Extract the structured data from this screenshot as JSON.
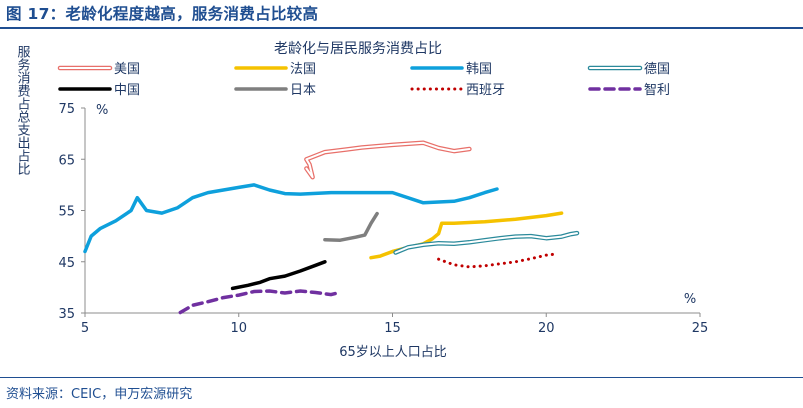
{
  "figure_title": "图 17：老龄化程度越高，服务消费占比较高",
  "source": "资料来源：CEIC，申万宏源研究",
  "chart_data": {
    "type": "line",
    "title": "老龄化与居民服务消费占比",
    "xlabel": "65岁以上人口占比",
    "ylabel": "服务消费占总支出占比",
    "x_unit": "%",
    "y_unit": "%",
    "xlim": [
      5,
      25
    ],
    "ylim": [
      35,
      75
    ],
    "x_ticks": [
      "5",
      "10",
      "15",
      "20",
      "25"
    ],
    "y_ticks": [
      "35",
      "45",
      "55",
      "65",
      "75"
    ],
    "grid": false,
    "legend_position": "top",
    "series": [
      {
        "name": "美国",
        "color": "#e8706a",
        "style": "double",
        "points": [
          [
            12.2,
            63.2
          ],
          [
            12.4,
            61.5
          ],
          [
            12.3,
            64
          ],
          [
            12.2,
            65
          ],
          [
            12.8,
            66.4
          ],
          [
            13.5,
            66.9
          ],
          [
            14,
            67.3
          ],
          [
            15,
            67.8
          ],
          [
            16,
            68.2
          ],
          [
            16.5,
            67.2
          ],
          [
            17,
            66.6
          ],
          [
            17.5,
            67.0
          ]
        ]
      },
      {
        "name": "法国",
        "color": "#f5c200",
        "style": "solid",
        "points": [
          [
            14.3,
            45.8
          ],
          [
            14.6,
            46.1
          ],
          [
            15,
            47
          ],
          [
            15.5,
            47.8
          ],
          [
            16,
            48.5
          ],
          [
            16.3,
            49.5
          ],
          [
            16.5,
            50.5
          ],
          [
            16.6,
            52.5
          ],
          [
            17,
            52.5
          ],
          [
            18,
            52.8
          ],
          [
            19,
            53.3
          ],
          [
            20,
            54
          ],
          [
            20.5,
            54.5
          ]
        ]
      },
      {
        "name": "韩国",
        "color": "#0ea0dc",
        "style": "solid",
        "points": [
          [
            5,
            47
          ],
          [
            5.2,
            50
          ],
          [
            5.5,
            51.5
          ],
          [
            6,
            53
          ],
          [
            6.5,
            55
          ],
          [
            6.7,
            57.5
          ],
          [
            7,
            55
          ],
          [
            7.5,
            54.5
          ],
          [
            8,
            55.5
          ],
          [
            8.5,
            57.5
          ],
          [
            9,
            58.5
          ],
          [
            10,
            59.5
          ],
          [
            10.5,
            60
          ],
          [
            11,
            59
          ],
          [
            11.5,
            58.3
          ],
          [
            12,
            58.2
          ],
          [
            13,
            58.5
          ],
          [
            14,
            58.5
          ],
          [
            15,
            58.5
          ],
          [
            16,
            56.5
          ],
          [
            17,
            56.8
          ],
          [
            17.5,
            57.5
          ],
          [
            18,
            58.5
          ],
          [
            18.4,
            59.2
          ]
        ]
      },
      {
        "name": "德国",
        "color": "#2b8a9b",
        "style": "double",
        "points": [
          [
            15.1,
            46.8
          ],
          [
            15.5,
            47.8
          ],
          [
            16,
            48.3
          ],
          [
            16.5,
            48.6
          ],
          [
            17,
            48.5
          ],
          [
            17.5,
            48.8
          ],
          [
            18,
            49.2
          ],
          [
            18.5,
            49.6
          ],
          [
            19,
            49.9
          ],
          [
            19.5,
            50
          ],
          [
            20,
            49.6
          ],
          [
            20.5,
            49.9
          ],
          [
            20.8,
            50.4
          ],
          [
            21,
            50.6
          ]
        ]
      },
      {
        "name": "中国",
        "color": "#000000",
        "style": "solid",
        "points": [
          [
            9.8,
            39.8
          ],
          [
            10.3,
            40.4
          ],
          [
            10.7,
            41
          ],
          [
            11,
            41.7
          ],
          [
            11.5,
            42.2
          ],
          [
            12,
            43.2
          ],
          [
            12.5,
            44.3
          ],
          [
            12.8,
            45
          ]
        ]
      },
      {
        "name": "日本",
        "color": "#7f7f7f",
        "style": "solid",
        "points": [
          [
            12.8,
            49.3
          ],
          [
            13.3,
            49.2
          ],
          [
            13.8,
            49.8
          ],
          [
            14.1,
            50.2
          ],
          [
            14.3,
            52.5
          ],
          [
            14.5,
            54.4
          ]
        ]
      },
      {
        "name": "西班牙",
        "color": "#c00000",
        "style": "dotted",
        "points": [
          [
            16.5,
            45.5
          ],
          [
            17,
            44.4
          ],
          [
            17.5,
            44
          ],
          [
            18,
            44.2
          ],
          [
            18.5,
            44.6
          ],
          [
            19,
            45
          ],
          [
            19.5,
            45.6
          ],
          [
            20,
            46.3
          ],
          [
            20.3,
            46.5
          ]
        ]
      },
      {
        "name": "智利",
        "color": "#7030a0",
        "style": "dashed",
        "points": [
          [
            8.1,
            35.1
          ],
          [
            8.5,
            36.5
          ],
          [
            9,
            37.2
          ],
          [
            9.5,
            38
          ],
          [
            10,
            38.5
          ],
          [
            10.5,
            39.2
          ],
          [
            11,
            39.3
          ],
          [
            11.5,
            38.9
          ],
          [
            12,
            39.3
          ],
          [
            12.5,
            39
          ],
          [
            13,
            38.6
          ],
          [
            13.2,
            38.9
          ]
        ]
      }
    ]
  }
}
